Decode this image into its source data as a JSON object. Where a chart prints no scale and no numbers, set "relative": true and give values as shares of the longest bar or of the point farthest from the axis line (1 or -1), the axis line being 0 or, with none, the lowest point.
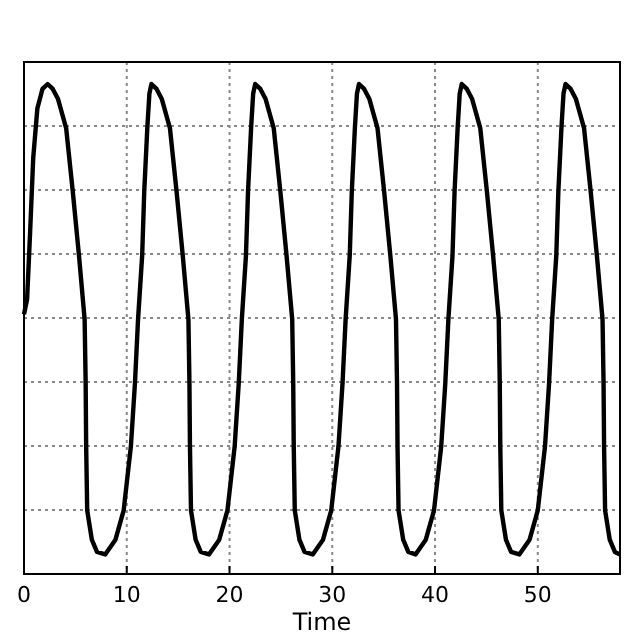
{
  "chart_data": {
    "type": "line",
    "relative": true,
    "xlabel": "Time",
    "xlim": [
      0,
      58
    ],
    "xticks": [
      0,
      10,
      20,
      30,
      40,
      50
    ],
    "grid": true,
    "line_style": "solid",
    "marker": "none",
    "series": [
      {
        "color": "#000000",
        "x": [
          0,
          0.3,
          0.6,
          0.9,
          1.3,
          1.8,
          2.3,
          2.8,
          3.3,
          4.1,
          4.75,
          5.35,
          5.9,
          6.0,
          6.05,
          6.15,
          6.6,
          7.1,
          7.9,
          8.9,
          9.7,
          10.4,
          10.8,
          11.1,
          11.5,
          11.7,
          12.0,
          12.2,
          12.4,
          12.9,
          13.4,
          14.2,
          14.85,
          15.45,
          16.0,
          16.1,
          16.15,
          16.25,
          16.7,
          17.2,
          18.0,
          19.0,
          19.8,
          20.5,
          20.9,
          21.2,
          21.6,
          21.8,
          22.1,
          22.3,
          22.5,
          23.0,
          23.5,
          24.3,
          24.95,
          25.55,
          26.1,
          26.2,
          26.25,
          26.35,
          26.8,
          27.3,
          28.1,
          29.1,
          29.9,
          30.6,
          31.0,
          31.3,
          31.7,
          31.9,
          32.2,
          32.4,
          32.6,
          33.1,
          33.6,
          34.4,
          35.05,
          35.65,
          36.2,
          36.3,
          36.35,
          36.45,
          36.9,
          37.4,
          38.1,
          39.1,
          39.9,
          40.6,
          41.0,
          41.3,
          41.7,
          41.9,
          42.2,
          42.4,
          42.6,
          43.1,
          43.6,
          44.4,
          45.05,
          45.65,
          46.2,
          46.3,
          46.35,
          46.45,
          46.9,
          47.4,
          48.2,
          49.2,
          50.0,
          50.7,
          51.1,
          51.4,
          51.8,
          52.0,
          52.3,
          52.5,
          52.7,
          53.2,
          53.7,
          54.5,
          55.15,
          55.75,
          56.3,
          56.4,
          56.45,
          56.55,
          57.0,
          57.5,
          58.0
        ],
        "values": [
          0.53,
          0.56,
          0.7,
          0.85,
          0.95,
          0.99,
          1,
          0.99,
          0.97,
          0.91,
          0.78,
          0.65,
          0.52,
          0.39,
          0.26,
          0.13,
          0.07,
          0.045,
          0.04,
          0.07,
          0.13,
          0.26,
          0.39,
          0.52,
          0.65,
          0.78,
          0.91,
          0.98,
          1,
          0.99,
          0.97,
          0.91,
          0.78,
          0.65,
          0.52,
          0.39,
          0.26,
          0.13,
          0.07,
          0.045,
          0.04,
          0.07,
          0.13,
          0.26,
          0.39,
          0.52,
          0.65,
          0.78,
          0.91,
          0.98,
          1,
          0.99,
          0.97,
          0.91,
          0.78,
          0.65,
          0.52,
          0.39,
          0.26,
          0.13,
          0.07,
          0.045,
          0.04,
          0.07,
          0.13,
          0.26,
          0.39,
          0.52,
          0.65,
          0.78,
          0.91,
          0.98,
          1,
          0.99,
          0.97,
          0.91,
          0.78,
          0.65,
          0.52,
          0.39,
          0.26,
          0.13,
          0.07,
          0.045,
          0.04,
          0.07,
          0.13,
          0.26,
          0.39,
          0.52,
          0.65,
          0.78,
          0.91,
          0.98,
          1,
          0.99,
          0.97,
          0.91,
          0.78,
          0.65,
          0.52,
          0.39,
          0.26,
          0.13,
          0.07,
          0.045,
          0.04,
          0.07,
          0.13,
          0.26,
          0.39,
          0.52,
          0.65,
          0.78,
          0.91,
          0.98,
          1,
          0.99,
          0.97,
          0.91,
          0.78,
          0.65,
          0.52,
          0.39,
          0.26,
          0.13,
          0.07,
          0.045,
          0.04
        ]
      }
    ]
  }
}
